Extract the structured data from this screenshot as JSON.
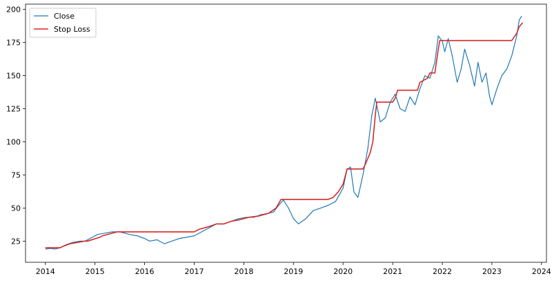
{
  "chart_data": {
    "type": "line",
    "title": "",
    "xlabel": "",
    "ylabel": "",
    "xlim": [
      2013.6,
      2024.1
    ],
    "ylim": [
      9,
      204
    ],
    "x_ticks": [
      2014,
      2015,
      2016,
      2017,
      2018,
      2019,
      2020,
      2021,
      2022,
      2023,
      2024
    ],
    "x_tick_labels": [
      "2014",
      "2015",
      "2016",
      "2017",
      "2018",
      "2019",
      "2020",
      "2021",
      "2022",
      "2023",
      "2024"
    ],
    "y_ticks": [
      25,
      50,
      75,
      100,
      125,
      150,
      175,
      200
    ],
    "y_tick_labels": [
      "25",
      "50",
      "75",
      "100",
      "125",
      "150",
      "175",
      "200"
    ],
    "grid": false,
    "legend": {
      "position": "top-left",
      "entries": [
        {
          "label": "Close",
          "color": "#1f77b4"
        },
        {
          "label": "Stop Loss",
          "color": "#d62728"
        }
      ]
    },
    "series": [
      {
        "name": "Close",
        "color": "#1f77b4",
        "x": [
          2014.0,
          2014.1,
          2014.2,
          2014.3,
          2014.4,
          2014.55,
          2014.7,
          2014.8,
          2014.95,
          2015.05,
          2015.2,
          2015.35,
          2015.5,
          2015.7,
          2015.85,
          2016.0,
          2016.1,
          2016.25,
          2016.4,
          2016.55,
          2016.7,
          2016.85,
          2017.0,
          2017.15,
          2017.3,
          2017.45,
          2017.6,
          2017.75,
          2017.9,
          2018.05,
          2018.2,
          2018.35,
          2018.5,
          2018.6,
          2018.7,
          2018.8,
          2018.9,
          2019.0,
          2019.1,
          2019.25,
          2019.4,
          2019.55,
          2019.7,
          2019.85,
          2020.0,
          2020.08,
          2020.15,
          2020.22,
          2020.3,
          2020.4,
          2020.5,
          2020.58,
          2020.65,
          2020.75,
          2020.85,
          2020.95,
          2021.05,
          2021.15,
          2021.25,
          2021.35,
          2021.45,
          2021.55,
          2021.65,
          2021.75,
          2021.85,
          2021.92,
          2022.0,
          2022.05,
          2022.12,
          2022.2,
          2022.3,
          2022.38,
          2022.45,
          2022.55,
          2022.65,
          2022.72,
          2022.8,
          2022.88,
          2022.95,
          2023.0,
          2023.1,
          2023.2,
          2023.3,
          2023.4,
          2023.5,
          2023.55,
          2023.6
        ],
        "y": [
          19,
          19.5,
          19,
          20,
          22,
          24,
          25,
          25,
          28,
          30,
          31,
          32,
          32,
          30,
          29,
          27,
          25,
          26,
          23,
          25,
          27,
          28,
          29,
          32,
          35,
          38,
          38,
          40,
          42,
          43,
          43,
          45,
          46,
          47,
          52,
          56,
          50,
          42,
          38,
          42,
          48,
          50,
          52,
          55,
          65,
          79,
          81,
          62,
          58,
          75,
          95,
          120,
          133,
          115,
          118,
          130,
          136,
          125,
          123,
          134,
          128,
          140,
          150,
          148,
          160,
          180,
          176,
          168,
          178,
          165,
          145,
          155,
          170,
          158,
          142,
          160,
          145,
          152,
          135,
          128,
          140,
          150,
          155,
          165,
          180,
          192,
          195
        ]
      },
      {
        "name": "Stop Loss",
        "color": "#d62728",
        "x": [
          2014.0,
          2014.3,
          2014.35,
          2014.5,
          2014.8,
          2014.85,
          2015.1,
          2015.15,
          2015.45,
          2017.0,
          2017.1,
          2017.3,
          2017.45,
          2017.6,
          2017.75,
          2017.9,
          2018.1,
          2018.3,
          2018.5,
          2018.65,
          2018.75,
          2019.7,
          2019.8,
          2019.9,
          2020.0,
          2020.05,
          2020.08,
          2020.4,
          2020.45,
          2020.55,
          2020.6,
          2020.65,
          2020.68,
          2021.0,
          2021.05,
          2021.1,
          2021.5,
          2021.55,
          2021.7,
          2021.75,
          2021.85,
          2021.92,
          2021.95,
          2023.4,
          2023.5,
          2023.55,
          2023.62
        ],
        "y": [
          20,
          20,
          21,
          23,
          25,
          25,
          28,
          29,
          32,
          32,
          34,
          36,
          38,
          38,
          40,
          41,
          43,
          44,
          46,
          50,
          56.5,
          56.5,
          58,
          62,
          68,
          75,
          79.5,
          79.5,
          83,
          92,
          100,
          120,
          130,
          130,
          133,
          139,
          139,
          145,
          148,
          152,
          152,
          170,
          176.5,
          176.5,
          182,
          187,
          190
        ]
      }
    ]
  }
}
